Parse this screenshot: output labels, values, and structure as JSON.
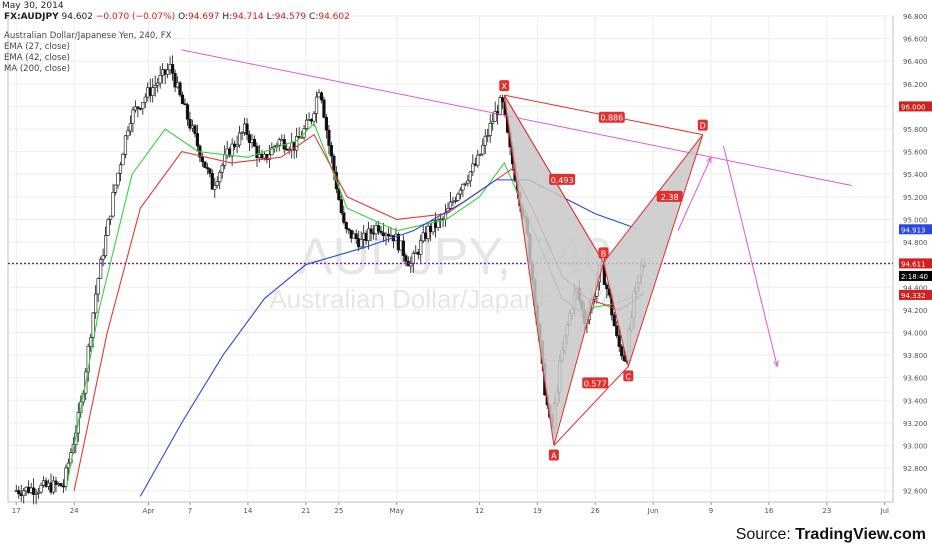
{
  "header": {
    "date": "May 30, 2014",
    "symbol": "FX:AUDJPY",
    "last": "94.602",
    "change": "−0.070 (−0.07%)",
    "open_label": "O:",
    "open": "94.697",
    "high_label": "H:",
    "high": "94.714",
    "low_label": "L:",
    "low": "94.579",
    "close_label": "C:",
    "close": "94.602"
  },
  "legend": {
    "title": "Australian Dollar/Japanese Yen, 240, FX",
    "ema1": "EMA (27, close)",
    "ema2": "EMA (42, close)",
    "ma": "MA (200, close)"
  },
  "watermark": {
    "symbol": "AUDJPY, 240",
    "name": "Australian Dollar/Japanese Yen"
  },
  "source": {
    "prefix": "Source: ",
    "brand": "TradingView.com"
  },
  "chart_data": {
    "type": "line",
    "series_kind": "candlestick",
    "title": "Australian Dollar/Japanese Yen, 240, FX",
    "ylim": [
      92.5,
      96.8
    ],
    "y_ticks": [
      "96.800",
      "96.600",
      "96.400",
      "96.200",
      "96.000",
      "95.800",
      "95.600",
      "95.400",
      "95.200",
      "95.000",
      "94.800",
      "94.600",
      "94.400",
      "94.200",
      "94.000",
      "93.800",
      "93.600",
      "93.400",
      "93.200",
      "93.000",
      "92.800",
      "92.600"
    ],
    "x_ticks": [
      "17",
      "24",
      "Apr",
      "7",
      "14",
      "21",
      "25",
      "May",
      "12",
      "19",
      "26",
      "Jun",
      "9",
      "16",
      "23",
      "Jul"
    ],
    "x_tick_index": [
      0,
      7,
      16,
      21,
      28,
      35,
      39,
      46,
      56,
      63,
      70,
      77,
      84,
      91,
      98,
      105
    ],
    "x_range": [
      -1,
      106
    ],
    "price_path": [
      [
        0,
        92.6
      ],
      [
        6,
        92.65
      ],
      [
        8,
        93.3
      ],
      [
        10,
        94.4
      ],
      [
        12,
        95.2
      ],
      [
        14,
        95.9
      ],
      [
        16,
        96.1
      ],
      [
        19,
        96.35
      ],
      [
        20,
        96.1
      ],
      [
        22,
        95.7
      ],
      [
        24,
        95.3
      ],
      [
        26,
        95.6
      ],
      [
        28,
        95.8
      ],
      [
        30,
        95.5
      ],
      [
        32,
        95.7
      ],
      [
        34,
        95.65
      ],
      [
        36,
        95.9
      ],
      [
        37,
        96.2
      ],
      [
        38,
        95.7
      ],
      [
        39,
        95.3
      ],
      [
        40,
        94.9
      ],
      [
        42,
        94.8
      ],
      [
        44,
        94.95
      ],
      [
        46,
        94.85
      ],
      [
        48,
        94.6
      ],
      [
        50,
        94.9
      ],
      [
        52,
        95.0
      ],
      [
        54,
        95.3
      ],
      [
        56,
        95.5
      ],
      [
        58,
        95.9
      ],
      [
        59,
        96.05
      ],
      [
        60,
        95.6
      ],
      [
        62,
        94.9
      ],
      [
        63,
        94.3
      ],
      [
        64,
        93.6
      ],
      [
        65,
        93.1
      ],
      [
        66,
        93.7
      ],
      [
        67,
        94.1
      ],
      [
        68,
        94.4
      ],
      [
        69,
        94.1
      ],
      [
        70,
        94.3
      ],
      [
        71,
        94.6
      ],
      [
        72,
        94.3
      ],
      [
        73,
        93.9
      ],
      [
        74,
        93.75
      ],
      [
        75,
        94.3
      ],
      [
        76,
        94.6
      ]
    ],
    "overlays": [
      {
        "name": "EMA (27, close)",
        "color": "#3ecf3e",
        "points": [
          [
            6,
            92.6
          ],
          [
            10,
            94.2
          ],
          [
            14,
            95.4
          ],
          [
            18,
            95.8
          ],
          [
            22,
            95.6
          ],
          [
            28,
            95.55
          ],
          [
            34,
            95.7
          ],
          [
            36,
            95.85
          ],
          [
            40,
            95.1
          ],
          [
            46,
            94.9
          ],
          [
            52,
            95.0
          ],
          [
            56,
            95.2
          ],
          [
            59,
            95.5
          ],
          [
            62,
            95.0
          ],
          [
            66,
            94.3
          ],
          [
            68,
            94.2
          ],
          [
            72,
            94.25
          ],
          [
            76,
            94.35
          ]
        ]
      },
      {
        "name": "EMA (42, close)",
        "color": "#e23a3a",
        "points": [
          [
            7,
            92.6
          ],
          [
            11,
            94.0
          ],
          [
            15,
            95.1
          ],
          [
            20,
            95.6
          ],
          [
            26,
            95.5
          ],
          [
            32,
            95.55
          ],
          [
            36,
            95.75
          ],
          [
            40,
            95.2
          ],
          [
            46,
            95.0
          ],
          [
            52,
            95.05
          ],
          [
            57,
            95.3
          ],
          [
            60,
            95.45
          ],
          [
            63,
            95.0
          ],
          [
            66,
            94.5
          ],
          [
            69,
            94.3
          ],
          [
            73,
            94.2
          ],
          [
            76,
            94.35
          ]
        ]
      },
      {
        "name": "MA (200, close)",
        "color": "#2a46e0",
        "points": [
          [
            15,
            92.55
          ],
          [
            20,
            93.2
          ],
          [
            25,
            93.8
          ],
          [
            30,
            94.3
          ],
          [
            35,
            94.6
          ],
          [
            42,
            94.75
          ],
          [
            48,
            94.9
          ],
          [
            54,
            95.15
          ],
          [
            58,
            95.35
          ],
          [
            62,
            95.35
          ],
          [
            66,
            95.2
          ],
          [
            70,
            95.05
          ],
          [
            75,
            94.92
          ]
        ]
      }
    ],
    "price_labels": [
      {
        "text": "96.000",
        "value": 96.0,
        "color": "#d21f1f"
      },
      {
        "text": "94.913",
        "value": 94.913,
        "color": "#2a46e0"
      },
      {
        "text": "94.611",
        "value": 94.611,
        "color": "#d21f1f"
      },
      {
        "text": "2:18:40",
        "value": 94.5,
        "color": "#000000"
      },
      {
        "text": "94.332",
        "value": 94.332,
        "color": "#d21f1f"
      }
    ],
    "current_price": 94.611,
    "pattern": {
      "type": "bearish butterfly",
      "color": "#e0302f",
      "fill": "#c8c8c8",
      "points": [
        {
          "label": "X",
          "x": 59,
          "y": 96.1
        },
        {
          "label": "A",
          "x": 65,
          "y": 93.0
        },
        {
          "label": "B",
          "x": 71,
          "y": 94.62
        },
        {
          "label": "C",
          "x": 74,
          "y": 93.7
        },
        {
          "label": "D",
          "x": 83,
          "y": 95.75
        }
      ],
      "ratios": [
        {
          "text": "0.886",
          "x": 72,
          "y": 95.9
        },
        {
          "text": "0.493",
          "x": 66,
          "y": 95.35
        },
        {
          "text": "2.38",
          "x": 79,
          "y": 95.2
        },
        {
          "text": "0.577",
          "x": 70,
          "y": 93.55
        }
      ]
    },
    "trendline": {
      "color": "#e05ad6",
      "points": [
        [
          20,
          96.5
        ],
        [
          101,
          95.3
        ]
      ]
    },
    "projection_arrows": {
      "color": "#e05ad6",
      "up": [
        [
          80,
          94.9
        ],
        [
          84,
          95.55
        ]
      ],
      "down": [
        [
          85.5,
          95.65
        ],
        [
          92,
          93.7
        ]
      ]
    }
  }
}
